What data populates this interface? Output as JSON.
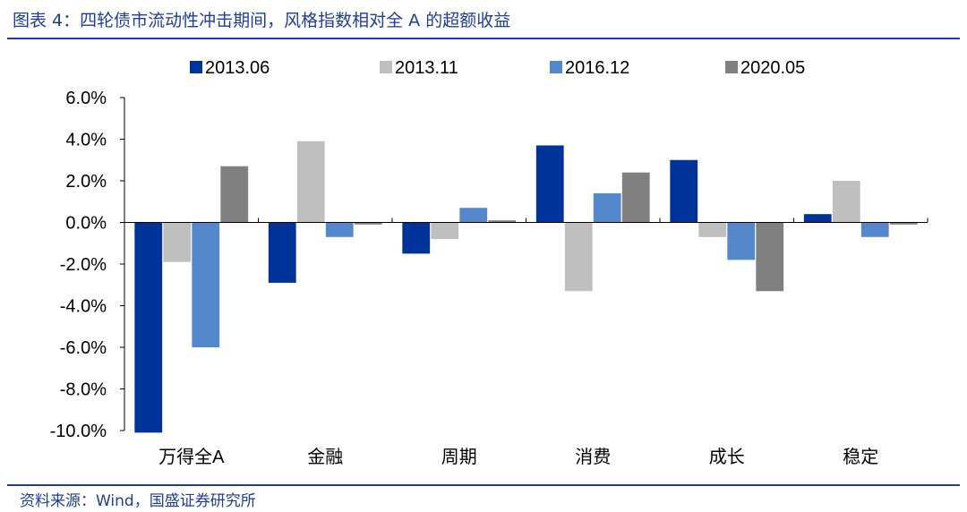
{
  "figure": {
    "title": "图表 4：四轮债市流动性冲击期间，风格指数相对全 A 的超额收益",
    "source": "资料来源：Wind，国盛证券研究所"
  },
  "colors": {
    "accent": "#1f3d99",
    "series": [
      "#003399",
      "#bfbfbf",
      "#5487cc",
      "#808080"
    ]
  },
  "chart_data": {
    "type": "bar",
    "categories": [
      "万得全A",
      "金融",
      "周期",
      "消费",
      "成长",
      "稳定"
    ],
    "series": [
      {
        "name": "2013.06",
        "values": [
          -10.1,
          -2.9,
          -1.5,
          3.7,
          3.0,
          0.4
        ]
      },
      {
        "name": "2013.11",
        "values": [
          -1.9,
          3.9,
          -0.8,
          -3.3,
          -0.7,
          2.0
        ]
      },
      {
        "name": "2016.12",
        "values": [
          -6.0,
          -0.7,
          0.7,
          1.4,
          -1.8,
          -0.7
        ]
      },
      {
        "name": "2020.05",
        "values": [
          2.7,
          -0.1,
          0.1,
          2.4,
          -3.3,
          -0.1
        ]
      }
    ],
    "ylim": [
      -10.0,
      6.0
    ],
    "yticks": [
      "6.0%",
      "4.0%",
      "2.0%",
      "0.0%",
      "-2.0%",
      "-4.0%",
      "-6.0%",
      "-8.0%",
      "-10.0%"
    ],
    "ytick_values": [
      6,
      4,
      2,
      0,
      -2,
      -4,
      -6,
      -8,
      -10
    ],
    "legend_position": "top",
    "grid": false,
    "xlabel": "",
    "ylabel": ""
  }
}
